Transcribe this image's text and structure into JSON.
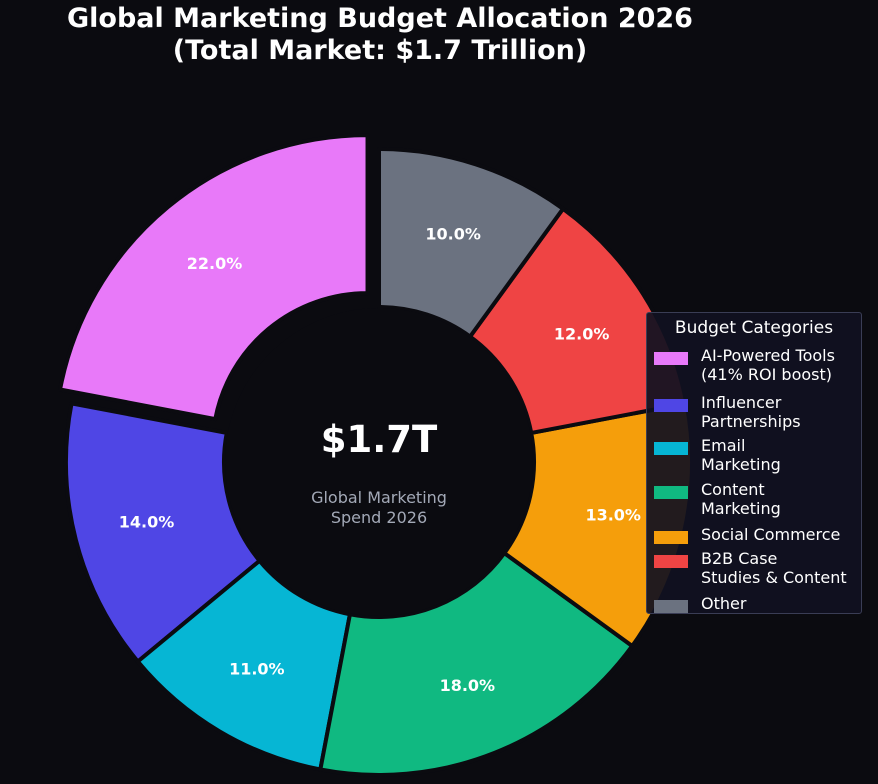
{
  "chart_data": {
    "type": "pie",
    "variant": "donut",
    "title_lines": [
      "Global Marketing Budget Allocation 2026",
      "(Total Market: $1.7 Trillion)"
    ],
    "center": {
      "value": "$1.7T",
      "subtitle_lines": [
        "Global Marketing",
        "Spend 2026"
      ]
    },
    "legend_title": "Budget Categories",
    "legend_placement": "right",
    "start_angle_deg": 90,
    "direction": "counterclockwise",
    "slices": [
      {
        "legend_lines": [
          "AI-Powered Tools",
          "(41% ROI boost)"
        ],
        "value": 22.0,
        "label": "22.0%",
        "color": "#e879f9",
        "exploded": true
      },
      {
        "legend_lines": [
          "Influencer",
          "Partnerships"
        ],
        "value": 14.0,
        "label": "14.0%",
        "color": "#4f46e5",
        "exploded": false
      },
      {
        "legend_lines": [
          "Email",
          "Marketing"
        ],
        "value": 11.0,
        "label": "11.0%",
        "color": "#06b6d4",
        "exploded": false
      },
      {
        "legend_lines": [
          "Content",
          "Marketing"
        ],
        "value": 18.0,
        "label": "18.0%",
        "color": "#10b981",
        "exploded": false
      },
      {
        "legend_lines": [
          "Social Commerce"
        ],
        "value": 13.0,
        "label": "13.0%",
        "color": "#f59e0b",
        "exploded": false
      },
      {
        "legend_lines": [
          "B2B Case",
          "Studies & Content"
        ],
        "value": 12.0,
        "label": "12.0%",
        "color": "#ef4444",
        "exploded": false
      },
      {
        "legend_lines": [
          "Other"
        ],
        "value": 10.0,
        "label": "10.0%",
        "color": "#6b7280",
        "exploded": false
      }
    ]
  }
}
